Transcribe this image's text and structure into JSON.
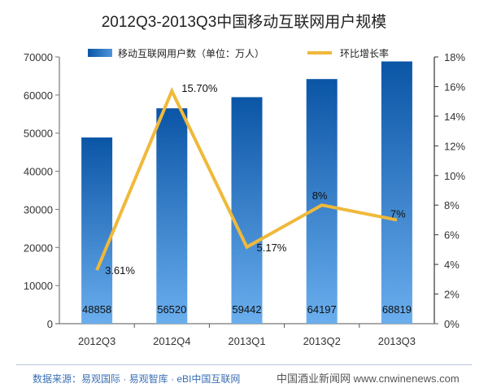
{
  "chart_data": {
    "type": "bar",
    "title": "2012Q3-2013Q3中国移动互联网用户规模",
    "categories": [
      "2012Q3",
      "2012Q4",
      "2013Q1",
      "2013Q2",
      "2013Q3"
    ],
    "series": [
      {
        "name": "移动互联网用户数（单位：万人）",
        "type": "bar",
        "axis": "left",
        "values": [
          48858,
          56520,
          59442,
          64197,
          68819
        ],
        "labels": [
          "48858",
          "56520",
          "59442",
          "64197",
          "68819"
        ],
        "color": "#0b55a6",
        "color_light": "#6aaeee"
      },
      {
        "name": "环比增长率",
        "type": "line",
        "axis": "right",
        "values": [
          3.61,
          15.7,
          5.17,
          8,
          7
        ],
        "labels": [
          "3.61%",
          "15.70%",
          "5.17%",
          "8%",
          "7%"
        ],
        "color": "#efb93a"
      }
    ],
    "y_left": {
      "range": [
        0,
        70000
      ],
      "ticks": [
        "0",
        "10000",
        "20000",
        "30000",
        "40000",
        "50000",
        "60000",
        "70000"
      ]
    },
    "y_right": {
      "range": [
        0,
        18
      ],
      "ticks": [
        "0%",
        "2%",
        "4%",
        "6%",
        "8%",
        "10%",
        "12%",
        "14%",
        "16%",
        "18%"
      ]
    },
    "xlabel": "",
    "ylabel": "",
    "grid": false,
    "legend_position": "top-center"
  },
  "footer": {
    "source": "数据来源：易观国际 · 易观智库 · eBI中国互联网",
    "watermark": "中国酒业新闻网  www.cnwinenews.com"
  }
}
